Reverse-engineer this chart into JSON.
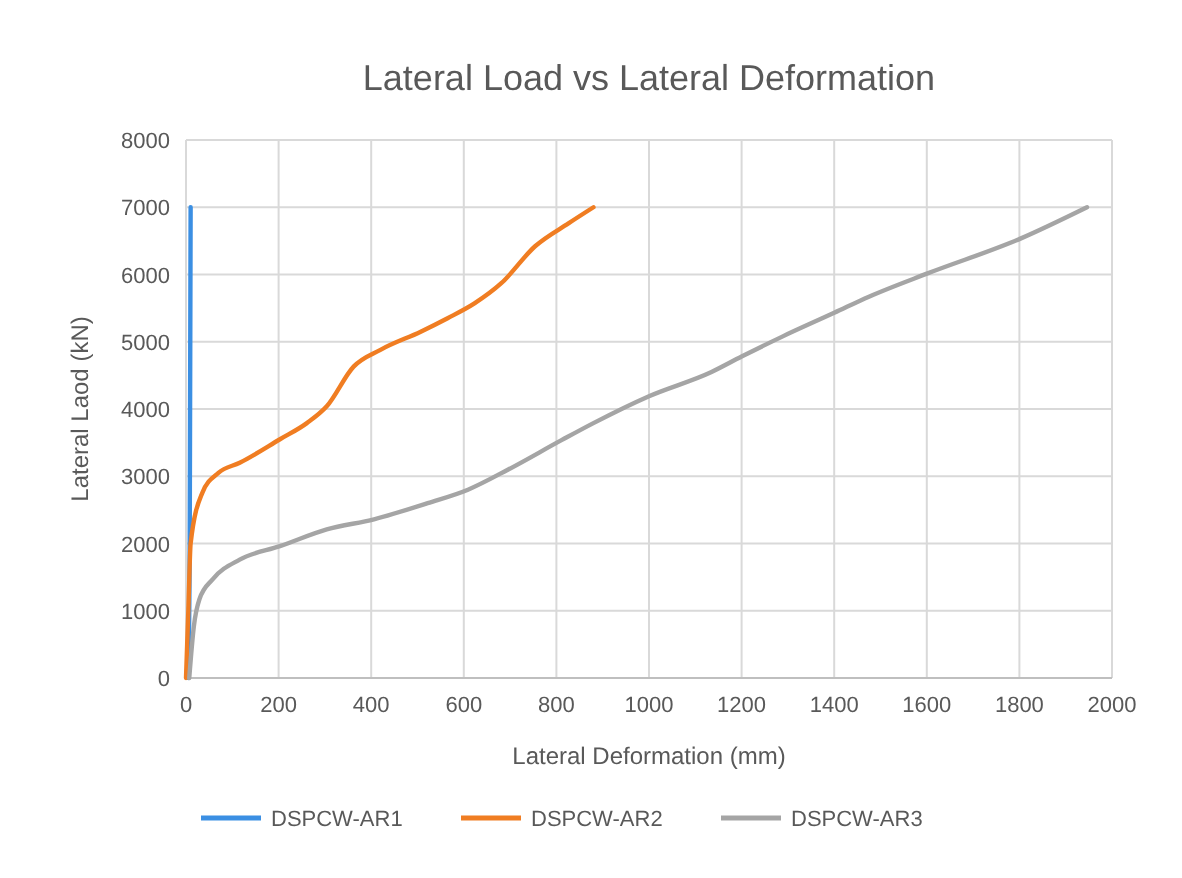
{
  "chart_data": {
    "type": "line",
    "title": "Lateral Load vs Lateral Deformation",
    "xlabel": "Lateral Deformation (mm)",
    "ylabel": "Lateral Laod (kN)",
    "xlim": [
      0,
      2000
    ],
    "xticks": [
      0,
      200,
      400,
      600,
      800,
      1000,
      1200,
      1400,
      1600,
      1800,
      2000
    ],
    "ylim": [
      0,
      8000
    ],
    "yticks": [
      0,
      1000,
      2000,
      3000,
      4000,
      5000,
      6000,
      7000,
      8000
    ],
    "grid": true,
    "legend": "bottom",
    "marker": "none",
    "line_style": "solid",
    "series": [
      {
        "name": "DSPCW-AR1",
        "color": "#3b8fe3",
        "x": [
          5,
          8,
          10
        ],
        "values": [
          0,
          2000,
          7000
        ]
      },
      {
        "name": "DSPCW-AR2",
        "color": "#f07d22",
        "x": [
          0,
          5,
          10,
          35,
          70,
          116,
          203,
          261,
          304,
          362,
          420,
          507,
          565,
          623,
          681,
          754,
          826,
          880
        ],
        "values": [
          0,
          1000,
          2000,
          2750,
          3050,
          3200,
          3550,
          3790,
          4040,
          4630,
          4880,
          5150,
          5350,
          5570,
          5870,
          6420,
          6760,
          7000
        ]
      },
      {
        "name": "DSPCW-AR3",
        "color": "#a5a5a5",
        "x": [
          7,
          17,
          29,
          58,
          116,
          203,
          304,
          406,
          522,
          609,
          696,
          812,
          880,
          1000,
          1135,
          1200,
          1289,
          1400,
          1475,
          1603,
          1801,
          1946
        ],
        "values": [
          0,
          770,
          1170,
          1470,
          1760,
          1960,
          2210,
          2360,
          2600,
          2800,
          3100,
          3540,
          3790,
          4190,
          4550,
          4780,
          5080,
          5430,
          5670,
          6020,
          6530,
          7000
        ]
      }
    ]
  }
}
